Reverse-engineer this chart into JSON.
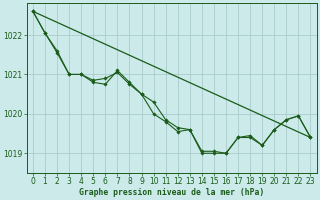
{
  "bg_color": "#cceaea",
  "grid_color": "#aacccc",
  "line_color": "#1a5c1a",
  "xlabel": "Graphe pression niveau de la mer (hPa)",
  "xlabel_color": "#1a5c1a",
  "tick_color": "#1a5c1a",
  "xlim": [
    -0.5,
    23.5
  ],
  "ylim": [
    1018.5,
    1022.8
  ],
  "yticks": [
    1019,
    1020,
    1021,
    1022
  ],
  "xticks": [
    0,
    1,
    2,
    3,
    4,
    5,
    6,
    7,
    8,
    9,
    10,
    11,
    12,
    13,
    14,
    15,
    16,
    17,
    18,
    19,
    20,
    21,
    22,
    23
  ],
  "line1_x": [
    0,
    1,
    2,
    3,
    4,
    5,
    6,
    7,
    8,
    9,
    10,
    11,
    12,
    13,
    14,
    15,
    16,
    17,
    18,
    19,
    20,
    21,
    22,
    23
  ],
  "line1_y": [
    1022.6,
    1022.05,
    1021.55,
    1021.0,
    1021.0,
    1020.85,
    1020.9,
    1021.05,
    1020.75,
    1020.5,
    1020.3,
    1019.85,
    1019.65,
    1019.6,
    1019.05,
    1019.05,
    1019.0,
    1019.4,
    1019.45,
    1019.2,
    1019.6,
    1019.85,
    1019.95,
    1019.4
  ],
  "line2_x": [
    0,
    1,
    2,
    3,
    4,
    5,
    6,
    7,
    8,
    9,
    10,
    11,
    12,
    13,
    14,
    15,
    16,
    17,
    18,
    19,
    20,
    21,
    22,
    23
  ],
  "line2_y": [
    1022.6,
    1022.05,
    1021.6,
    1021.0,
    1021.0,
    1020.8,
    1020.75,
    1021.1,
    1020.8,
    1020.5,
    1020.0,
    1019.8,
    1019.55,
    1019.6,
    1019.0,
    1019.0,
    1019.0,
    1019.4,
    1019.4,
    1019.2,
    1019.6,
    1019.85,
    1019.95,
    1019.4
  ],
  "line3_x": [
    0,
    23
  ],
  "line3_y": [
    1022.6,
    1019.4
  ]
}
